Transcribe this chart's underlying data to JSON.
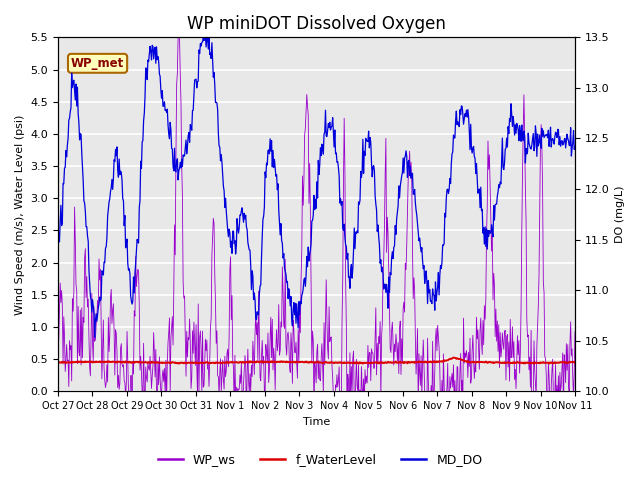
{
  "title": "WP miniDOT Dissolved Oxygen",
  "ylabel_left": "Wind Speed (m/s), Water Level (psi)",
  "ylabel_right": "DO (mg/L)",
  "xlabel": "Time",
  "ylim_left": [
    0.0,
    5.5
  ],
  "ylim_right": [
    10.0,
    13.5
  ],
  "yticks_left": [
    0.0,
    0.5,
    1.0,
    1.5,
    2.0,
    2.5,
    3.0,
    3.5,
    4.0,
    4.5,
    5.0,
    5.5
  ],
  "yticks_right": [
    10.0,
    10.5,
    11.0,
    11.5,
    12.0,
    12.5,
    13.0,
    13.5
  ],
  "xtick_labels": [
    "Oct 27",
    "Oct 28",
    "Oct 29",
    "Oct 30",
    "Oct 31",
    "Nov 1",
    "Nov 2",
    "Nov 3",
    "Nov 4",
    "Nov 5",
    "Nov 6",
    "Nov 7",
    "Nov 8",
    "Nov 9",
    "Nov 10",
    "Nov 11"
  ],
  "color_ws": "#9900cc",
  "color_wl": "#dd0000",
  "color_do": "#0000dd",
  "legend_box_facecolor": "#ffffbb",
  "legend_box_edge": "#aa6600",
  "legend_label": "WP_met",
  "legend_label_color": "#880000",
  "background_color": "#e8e8e8",
  "grid_color": "#ffffff",
  "title_fontsize": 12,
  "axis_fontsize": 8,
  "tick_fontsize": 8,
  "legend_fontsize": 9
}
